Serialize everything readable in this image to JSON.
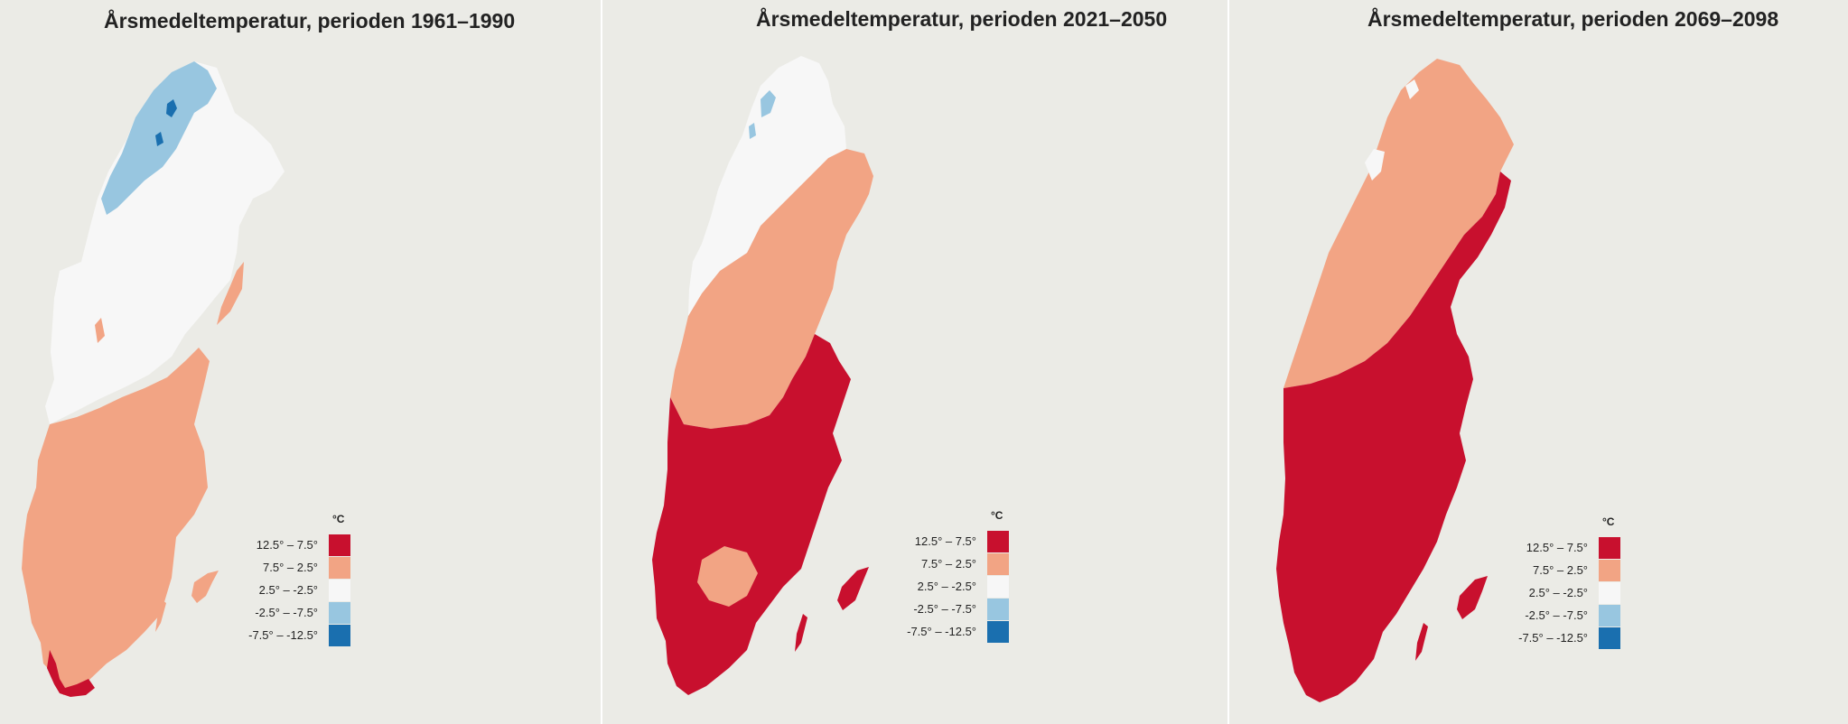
{
  "panels": [
    {
      "title": "Årsmedeltemperatur, perioden 1961–1990",
      "period": "1961–1990",
      "class_fractions_of_land_area": {
        "-7.5° – -12.5°": 0.003,
        "-2.5° – -7.5°": 0.05,
        "2.5° – -2.5°": 0.45,
        "7.5° – 2.5°": 0.49,
        "12.5° – 7.5°": 0.007
      }
    },
    {
      "title": "Årsmedeltemperatur, perioden 2021–2050",
      "period": "2021–2050",
      "class_fractions_of_land_area": {
        "-7.5° – -12.5°": 0.0,
        "-2.5° – -7.5°": 0.01,
        "2.5° – -2.5°": 0.2,
        "7.5° – 2.5°": 0.52,
        "12.5° – 7.5°": 0.27
      }
    },
    {
      "title": "Årsmedeltemperatur, perioden 2069–2098",
      "period": "2069–2098",
      "class_fractions_of_land_area": {
        "-7.5° – -12.5°": 0.0,
        "-2.5° – -7.5°": 0.0,
        "2.5° – -2.5°": 0.04,
        "7.5° – 2.5°": 0.38,
        "12.5° – 7.5°": 0.58
      }
    }
  ],
  "legend": {
    "unit": "°C",
    "items": [
      {
        "label": "12.5° – 7.5°",
        "color": "#c8102e"
      },
      {
        "label": "7.5° – 2.5°",
        "color": "#f2a484"
      },
      {
        "label": "2.5° – -2.5°",
        "color": "#f7f7f7"
      },
      {
        "label": "-2.5° – -7.5°",
        "color": "#98c6e0"
      },
      {
        "label": "-7.5° – -12.5°",
        "color": "#1a6faf"
      }
    ]
  },
  "colors": {
    "background": "#ebebe6",
    "divider": "#ffffff"
  }
}
